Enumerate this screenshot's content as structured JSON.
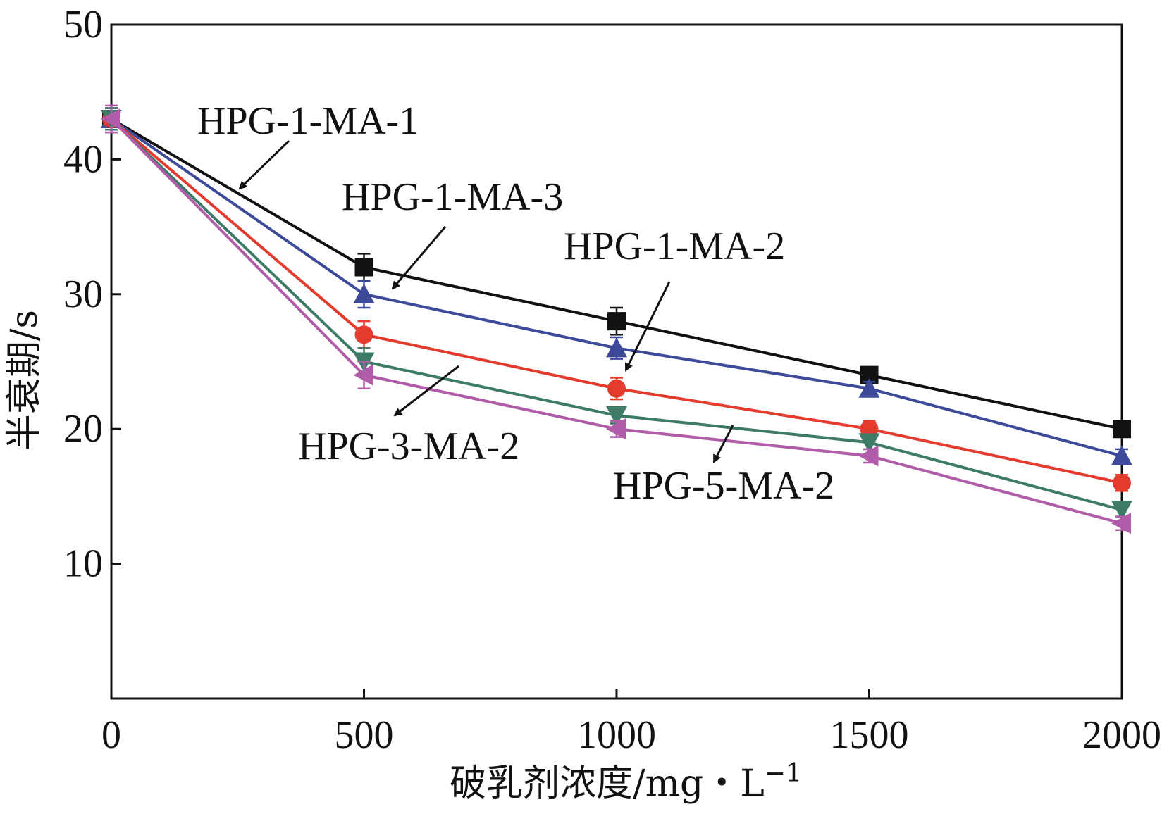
{
  "chart_data": {
    "type": "line",
    "title": "",
    "xlabel": "破乳剂浓度/mg・L",
    "xlabel_sup": "−1",
    "ylabel": "半衰期/s",
    "xlim": [
      0,
      2000
    ],
    "ylim": [
      0,
      50
    ],
    "x": [
      0,
      500,
      1000,
      1500,
      2000
    ],
    "x_ticks": [
      0,
      500,
      1000,
      1500,
      2000
    ],
    "x_tick_labels": [
      "0",
      "500",
      "1000",
      "1500",
      "2000"
    ],
    "y_ticks": [
      10,
      20,
      30,
      40,
      50
    ],
    "y_tick_labels": [
      "10",
      "20",
      "30",
      "40",
      "50"
    ],
    "grid": false,
    "series": [
      {
        "name": "HPG-1-MA-1",
        "color": "#111111",
        "marker": "square",
        "values": [
          43,
          32,
          28,
          24,
          20
        ],
        "errors": [
          0.8,
          1.0,
          1.0,
          0.5,
          0.5
        ]
      },
      {
        "name": "HPG-1-MA-3",
        "color": "#3d4a9a",
        "marker": "triangle-up",
        "values": [
          43,
          30,
          26,
          23,
          18
        ],
        "errors": [
          0.8,
          1.0,
          0.8,
          0.5,
          0.5
        ]
      },
      {
        "name": "HPG-1-MA-2",
        "color": "#e53a2e",
        "marker": "circle",
        "values": [
          43,
          27,
          23,
          20,
          16
        ],
        "errors": [
          0.8,
          1.0,
          0.8,
          0.6,
          0.6
        ]
      },
      {
        "name": "HPG-3-MA-2",
        "color": "#3e7a68",
        "marker": "triangle-down",
        "values": [
          43,
          25,
          21,
          19,
          14
        ],
        "errors": [
          0.8,
          1.0,
          0.6,
          0.5,
          0.5
        ]
      },
      {
        "name": "HPG-5-MA-2",
        "color": "#b05ca8",
        "marker": "triangle-left",
        "values": [
          43,
          24,
          20,
          18,
          13
        ],
        "errors": [
          1.0,
          1.0,
          0.6,
          0.5,
          0.5
        ]
      }
    ],
    "annotations": [
      {
        "text": "HPG-1-MA-1",
        "series": "HPG-1-MA-1"
      },
      {
        "text": "HPG-1-MA-3",
        "series": "HPG-1-MA-3"
      },
      {
        "text": "HPG-1-MA-2",
        "series": "HPG-1-MA-2"
      },
      {
        "text": "HPG-3-MA-2",
        "series": "HPG-3-MA-2"
      },
      {
        "text": "HPG-5-MA-2",
        "series": "HPG-5-MA-2"
      }
    ]
  }
}
